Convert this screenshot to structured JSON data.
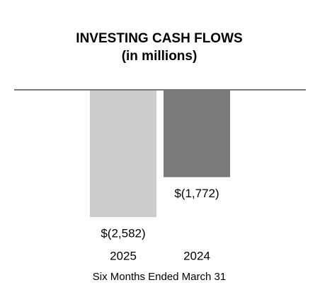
{
  "chart_data": {
    "type": "bar",
    "title": "INVESTING CASH FLOWS",
    "subtitle": "(in millions)",
    "categories": [
      "2025",
      "2024"
    ],
    "values": [
      -2582,
      -1772
    ],
    "value_labels": [
      "$(2,582)",
      "$(1,772)"
    ],
    "colors": [
      "#cccccc",
      "#7a7a7a"
    ],
    "xlabel": "Six Months Ended March 31"
  }
}
